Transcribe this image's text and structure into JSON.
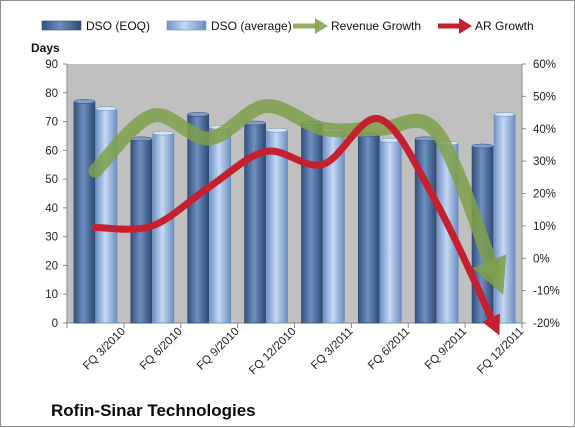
{
  "chart_data": {
    "type": "bar",
    "title": "Rofin-Sinar Technologies",
    "ylabel": "Days",
    "ylim": [
      0,
      90
    ],
    "y_ticks": [
      0,
      10,
      20,
      30,
      40,
      50,
      60,
      70,
      80,
      90
    ],
    "y2lim": [
      -20,
      60
    ],
    "y2_ticks": [
      "-20%",
      "-10%",
      "0%",
      "10%",
      "20%",
      "30%",
      "40%",
      "50%",
      "60%"
    ],
    "y2_tick_values": [
      -20,
      -10,
      0,
      10,
      20,
      30,
      40,
      50,
      60
    ],
    "categories": [
      "FQ 3/2010",
      "FQ 6/2010",
      "FQ 9/2010",
      "FQ 12/2010",
      "FQ 3/2011",
      "FQ 6/2011",
      "FQ 9/2011",
      "FQ 12/2011"
    ],
    "x_tick_labels": [
      "FQ 3/2010",
      "FQ 6/2010",
      "FQ 9/2010",
      "FQ 12/2010",
      "FQ 3/2011",
      "FQ 6/2011",
      "FQ 9/2011",
      "FQ 12/2011"
    ],
    "legend_position": "top",
    "grid": false,
    "series": [
      {
        "name": "DSO (EOQ)",
        "type": "bar",
        "axis": "left",
        "color": "#4a6a9a",
        "values": [
          77,
          64,
          72.5,
          69.5,
          69.5,
          65.5,
          64,
          61.5
        ]
      },
      {
        "name": "DSO (average)",
        "type": "bar",
        "axis": "left",
        "color": "#94b2dc",
        "values": [
          74.5,
          66,
          68,
          67,
          67,
          63.5,
          62.5,
          72.5
        ]
      },
      {
        "name": "Revenue Growth",
        "type": "line",
        "axis": "right",
        "unit": "%",
        "color": "#7fa04a",
        "values": [
          27,
          44,
          37,
          47,
          40,
          40,
          39,
          -4
        ]
      },
      {
        "name": "AR Growth",
        "type": "line",
        "axis": "right",
        "unit": "%",
        "color": "#c62030",
        "values": [
          9.5,
          10,
          22,
          33,
          29,
          43,
          17,
          -20
        ]
      }
    ]
  }
}
